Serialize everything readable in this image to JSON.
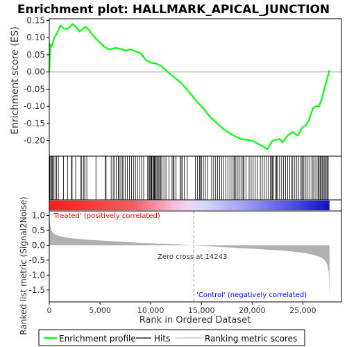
{
  "title": "Enrichment plot: HALLMARK_APICAL_JUNCTION",
  "colors": {
    "es_line": "#00ff00",
    "hits": "#000000",
    "metric_fill": "#b0b0b0",
    "zero_line": "#999999",
    "label_red": "#ff0000",
    "label_blue": "#0000ff",
    "frame": "#000000"
  },
  "chart_data": [
    {
      "name": "es-panel",
      "type": "line",
      "ylabel": "Enrichment score (ES)",
      "ylim": [
        -0.245,
        0.155
      ],
      "xlim": [
        0,
        28800
      ],
      "yticks": [
        0.15,
        0.1,
        0.05,
        0.0,
        -0.05,
        -0.1,
        -0.15,
        -0.2
      ],
      "ytick_labels": [
        "0.15",
        "0.10",
        "0.05",
        "0.00",
        "-0.05",
        "-0.10",
        "-0.15",
        "-0.20"
      ],
      "series": [
        {
          "name": "Enrichment profile",
          "x": [
            0,
            100,
            250,
            500,
            800,
            1100,
            1400,
            1700,
            2000,
            2300,
            2600,
            3000,
            3300,
            3600,
            4000,
            4500,
            5000,
            5500,
            6000,
            6500,
            7000,
            7500,
            8000,
            8500,
            9000,
            9500,
            10000,
            10500,
            11000,
            11500,
            12000,
            12500,
            13000,
            13500,
            14000,
            14500,
            15000,
            15500,
            16000,
            16500,
            17000,
            17500,
            18000,
            18500,
            19000,
            19500,
            20000,
            20500,
            21000,
            21300,
            21500,
            21800,
            22000,
            22300,
            22700,
            23000,
            23500,
            24000,
            24500,
            25000,
            25300,
            25600,
            26000,
            26300,
            26600,
            26900,
            27200,
            27400,
            27600
          ],
          "y": [
            0.0,
            0.08,
            0.075,
            0.1,
            0.115,
            0.135,
            0.128,
            0.125,
            0.13,
            0.14,
            0.132,
            0.118,
            0.125,
            0.132,
            0.118,
            0.1,
            0.085,
            0.072,
            0.065,
            0.07,
            0.068,
            0.062,
            0.066,
            0.06,
            0.055,
            0.035,
            0.027,
            0.025,
            0.018,
            0.005,
            -0.008,
            -0.02,
            -0.032,
            -0.048,
            -0.066,
            -0.085,
            -0.1,
            -0.118,
            -0.135,
            -0.148,
            -0.162,
            -0.173,
            -0.182,
            -0.19,
            -0.196,
            -0.198,
            -0.2,
            -0.208,
            -0.215,
            -0.222,
            -0.225,
            -0.21,
            -0.2,
            -0.198,
            -0.195,
            -0.205,
            -0.185,
            -0.175,
            -0.185,
            -0.16,
            -0.155,
            -0.14,
            -0.105,
            -0.1,
            -0.1,
            -0.075,
            -0.04,
            -0.02,
            0.005
          ]
        }
      ]
    },
    {
      "name": "metric-panel",
      "type": "area",
      "xlabel": "Rank in Ordered Dataset",
      "ylabel": "Ranked list metric (Signal2Noise)",
      "ylim": [
        -1.9,
        1.15
      ],
      "xlim": [
        0,
        28800
      ],
      "yticks": [
        1.0,
        0.5,
        0.0,
        -0.5,
        -1.0,
        -1.5
      ],
      "ytick_labels": [
        "1.0",
        "0.5",
        "0.0",
        "-0.5",
        "-1.0",
        "-1.5"
      ],
      "xticks": [
        0,
        5000,
        10000,
        15000,
        20000,
        25000
      ],
      "xtick_labels": [
        "0",
        "5,000",
        "10,000",
        "15,000",
        "20,000",
        "25,000"
      ],
      "series": [
        {
          "name": "Ranking metric scores",
          "x": [
            0,
            50,
            150,
            300,
            500,
            800,
            1200,
            1700,
            2300,
            3000,
            4000,
            5000,
            6000,
            7000,
            8000,
            9000,
            10000,
            11000,
            12000,
            13000,
            14243,
            15000,
            16000,
            17000,
            18000,
            19000,
            20000,
            21000,
            22000,
            23000,
            24000,
            24800,
            25500,
            26000,
            26500,
            26900,
            27200,
            27400,
            27550,
            27620
          ],
          "y": [
            1.02,
            0.75,
            0.55,
            0.45,
            0.38,
            0.33,
            0.29,
            0.26,
            0.23,
            0.21,
            0.18,
            0.16,
            0.14,
            0.12,
            0.1,
            0.08,
            0.07,
            0.05,
            0.04,
            0.02,
            0.0,
            -0.02,
            -0.04,
            -0.06,
            -0.08,
            -0.1,
            -0.12,
            -0.14,
            -0.16,
            -0.18,
            -0.21,
            -0.24,
            -0.28,
            -0.32,
            -0.37,
            -0.43,
            -0.52,
            -0.65,
            -0.9,
            -1.72
          ]
        }
      ]
    }
  ],
  "hits": [
    60,
    150,
    260,
    330,
    420,
    560,
    720,
    900,
    1400,
    1800,
    2200,
    2250,
    2600,
    3100,
    3200,
    3400,
    3500,
    3700,
    4600,
    5500,
    5600,
    6100,
    6300,
    6450,
    6600,
    6800,
    6900,
    7050,
    7200,
    7350,
    7500,
    7700,
    7900,
    8100,
    8300,
    8500,
    8700,
    8900,
    9100,
    9300,
    9700,
    9800,
    9900,
    10000,
    10050,
    10100,
    10200,
    10300,
    10350,
    10400,
    10500,
    10600,
    10700,
    10800,
    10900,
    11000,
    11100,
    11300,
    11500,
    11800,
    12100,
    12200,
    12300,
    12500,
    12900,
    13000,
    13100,
    13300,
    13600,
    14400,
    14600,
    14800,
    14900,
    15000,
    15200,
    15400,
    15600,
    16000,
    16200,
    16400,
    16600,
    16800,
    17000,
    17200,
    17400,
    17600,
    17800,
    18000,
    18200,
    18300,
    18400,
    18600,
    18800,
    19000,
    19100,
    19200,
    19400,
    19700,
    19900,
    20100,
    20300,
    20500,
    20800,
    21000,
    21200,
    21400,
    21600,
    21800,
    21900,
    22000,
    22100,
    22300,
    22400,
    22500,
    22700,
    22900,
    23100,
    23300,
    23500,
    23700,
    23900,
    24000,
    24200,
    24400,
    24600,
    24800,
    24900,
    25000,
    25100,
    25300,
    25500,
    25700,
    25900,
    26000,
    26200,
    26400,
    26500,
    26600,
    26700,
    26800,
    26900,
    27000,
    27100,
    27200,
    27300,
    27400,
    27500
  ],
  "heat_zero": 14243,
  "metric_labels": {
    "treated": "'Treated' (positively correlated)",
    "control": "'Control' (negatively correlated)",
    "zero_cross": "Zero cross at 14243"
  },
  "legend": {
    "items": [
      {
        "label": "Enrichment profile",
        "swatch": "line-green"
      },
      {
        "label": "Hits",
        "swatch": "line-black"
      },
      {
        "label": "Ranking metric scores",
        "swatch": "line-gray"
      }
    ]
  }
}
